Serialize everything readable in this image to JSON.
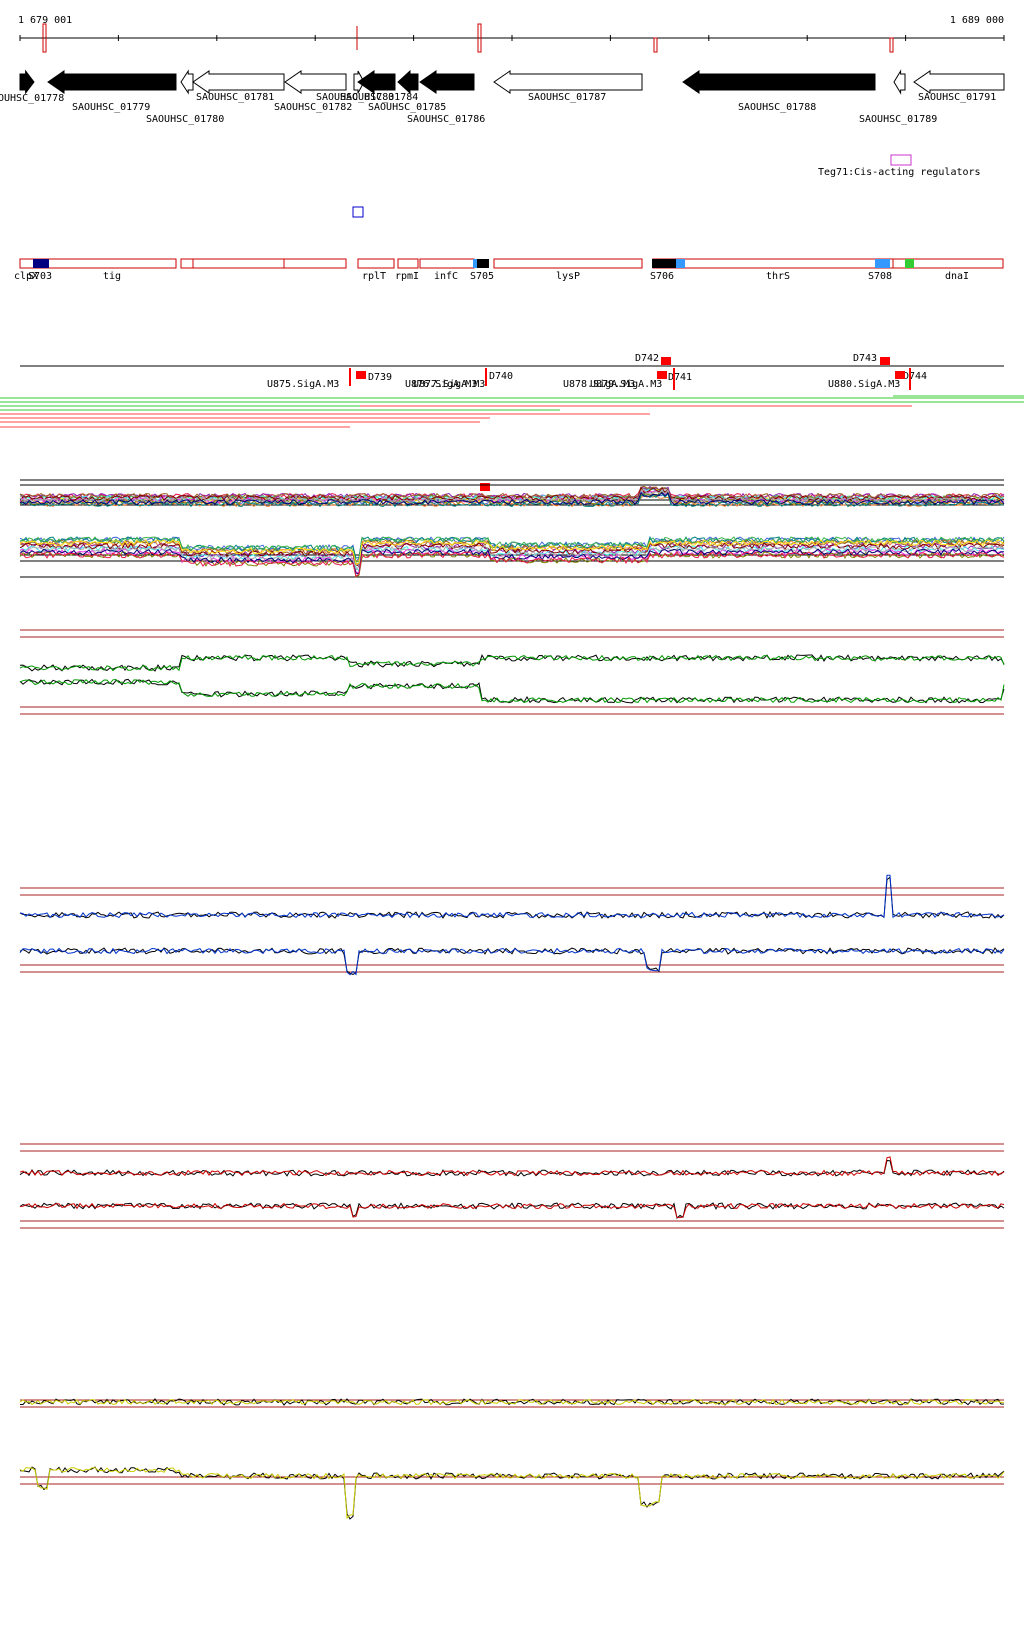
{
  "coord": {
    "start": "1 679 001",
    "end": "1 689 000"
  },
  "colors": {
    "ruler_mark": "#cc0000",
    "feature_outline": "#cc0000",
    "tss_red": "#ff0000",
    "reg_magenta": "#cc33cc",
    "track_border": "#aa2222",
    "panel1_series": "#009900",
    "panel2_series": "#0033cc",
    "panel3_series": "#cc0000",
    "panel4_series": "#cccc00",
    "black": "#000000",
    "rna_green": "#33cc33",
    "rna_red": "#ff4444"
  },
  "genes": [
    {
      "label": "OUHSC_01778",
      "dir": "right",
      "filled": true
    },
    {
      "label": "SAOUHSC_01779",
      "dir": "left",
      "filled": true
    },
    {
      "label": "SAOUHSC_01780",
      "dir": "left",
      "filled": false
    },
    {
      "label": "SAOUHSC_01781",
      "dir": "left",
      "filled": false
    },
    {
      "label": "SAOUHSC_01782",
      "dir": "left",
      "filled": false
    },
    {
      "label": "SAOUHSC_01783",
      "dir": "right",
      "filled": false
    },
    {
      "label": "SAOUHSC_01784",
      "dir": "left",
      "filled": true
    },
    {
      "label": "SAOUHSC_01785",
      "dir": "left",
      "filled": true
    },
    {
      "label": "SAOUHSC_01786",
      "dir": "left",
      "filled": true
    },
    {
      "label": "SAOUHSC_01787",
      "dir": "left",
      "filled": false
    },
    {
      "label": "SAOUHSC_01788",
      "dir": "left",
      "filled": true
    },
    {
      "label": "SAOUHSC_01789",
      "dir": "left",
      "filled": false
    },
    {
      "label": "SAOUHSC_01791",
      "dir": "left",
      "filled": false
    }
  ],
  "regulators": [
    {
      "label": "Teg71:Cis-acting regulators"
    }
  ],
  "features": [
    {
      "label": "clpX"
    },
    {
      "label": "S703"
    },
    {
      "label": "tig"
    },
    {
      "label": "rplT"
    },
    {
      "label": "rpmI"
    },
    {
      "label": "infC"
    },
    {
      "label": "S705"
    },
    {
      "label": "lysP"
    },
    {
      "label": "S706"
    },
    {
      "label": "thrS"
    },
    {
      "label": "S708"
    },
    {
      "label": "dnaI"
    }
  ],
  "tss": [
    {
      "label": "D739"
    },
    {
      "label": "D740"
    },
    {
      "label": "D741"
    },
    {
      "label": "D742"
    },
    {
      "label": "D743"
    },
    {
      "label": "D744"
    }
  ],
  "sigma": [
    {
      "label": "U875.SigA.M3"
    },
    {
      "label": "U876.SigA.M3"
    },
    {
      "label": "U877.SigA.M3"
    },
    {
      "label": "U878.SigA.M3"
    },
    {
      "label": "U879.SigA.M3"
    },
    {
      "label": "U880.SigA.M3"
    }
  ]
}
